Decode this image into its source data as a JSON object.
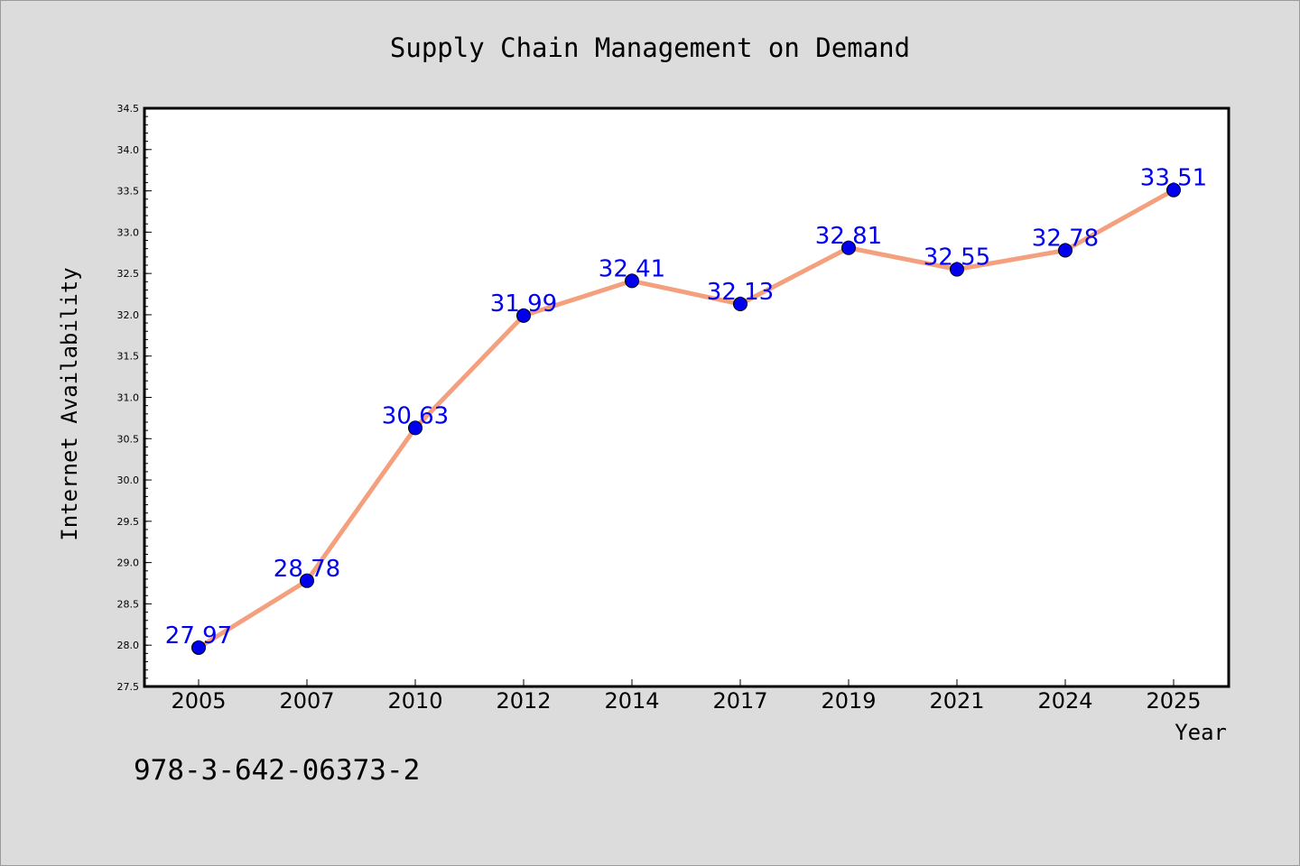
{
  "footer_text": "978-3-642-06373-2",
  "chart_data": {
    "type": "line",
    "title": "Supply Chain Management on Demand",
    "xlabel": "Year",
    "ylabel": "Internet Availability",
    "categories": [
      "2005",
      "2007",
      "2010",
      "2012",
      "2014",
      "2017",
      "2019",
      "2021",
      "2024",
      "2025"
    ],
    "series": [
      {
        "values": [
          27.97,
          28.78,
          30.63,
          31.99,
          32.41,
          32.13,
          32.81,
          32.55,
          32.78,
          33.51
        ]
      }
    ],
    "data_labels": [
      "27.97",
      "28.78",
      "30.63",
      "31.99",
      "32.41",
      "32.13",
      "32.81",
      "32.55",
      "32.78",
      "33.51"
    ],
    "ylim": [
      27.5,
      34.5
    ],
    "yticks": [
      "27.5",
      "28.0",
      "28.5",
      "29.0",
      "29.5",
      "30.0",
      "30.5",
      "31.0",
      "31.5",
      "32.0",
      "32.5",
      "33.0",
      "33.5",
      "34.0",
      "34.5"
    ],
    "grid": false,
    "legend": "none",
    "colors": {
      "line": "#f4a07e",
      "marker": "#0000ee",
      "label": "#0000ee",
      "background": "#dcdcdc",
      "plot_background": "#ffffff"
    }
  }
}
